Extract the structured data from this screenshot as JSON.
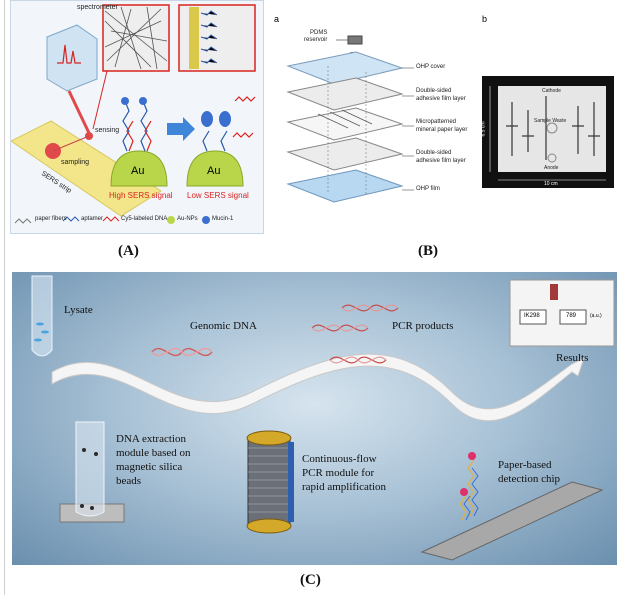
{
  "panelA": {
    "spectrometer": "spectrometer",
    "sensing": "sensing",
    "sampling": "sampling",
    "sers_strip": "SERS strip",
    "au_left": "Au",
    "au_right": "Au",
    "high_signal": "High SERS signal",
    "low_signal": "Low SERS signal",
    "legend": [
      "paper fibers",
      "aptamer",
      "Cy5-labeled DNA",
      "Au-NPs",
      "Mucin-1"
    ],
    "caption": "(A)"
  },
  "panelB": {
    "letter_a": "a",
    "letter_b": "b",
    "pdms": "PDMS",
    "reservoir": "reservoir",
    "layers": [
      "OHP cover",
      "Double-sided",
      "adhesive film layer",
      "Micropatterned",
      "mineral paper layer",
      "Double-sided",
      "adhesive film layer",
      "OHP film"
    ],
    "photo": {
      "cathode": "Cathode",
      "sample_waste": "Sample Waste",
      "anode": "Anode",
      "height": "6.5 cm",
      "width": "10 cm"
    },
    "caption": "(B)"
  },
  "panelC": {
    "lysate": "Lysate",
    "genomic_dna": "Genomic DNA",
    "pcr_products": "PCR products",
    "results": "Results",
    "result_box1": "IK298",
    "result_box2": "789",
    "result_box3": "(a.u.)",
    "dna_extraction": [
      "DNA extraction",
      "module based on",
      "magnetic silica",
      "beads"
    ],
    "pcr_module": [
      "Continuous-flow",
      "PCR module for",
      "rapid amplification"
    ],
    "paper_chip": [
      "Paper-based",
      "detection chip"
    ],
    "caption": "(C)"
  },
  "colors": {
    "bg_c_center": "#c9dbe8",
    "bg_c_edge": "#5f84a6",
    "strip_yellow": "#f3e58a",
    "au_green": "#b9d64a",
    "red_text": "#d9231f"
  }
}
